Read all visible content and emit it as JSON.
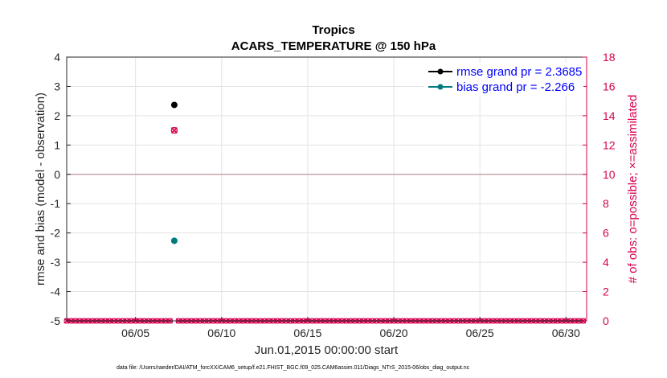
{
  "chart_data": {
    "type": "scatter",
    "title": "Tropics",
    "subtitle": "ACARS_TEMPERATURE @ 150 hPa",
    "xlabel": "Jun.01,2015 00:00:00 start",
    "ylabel_left": "rmse and bias (model - observation)",
    "ylabel_right": "# of obs: o=possible; ×=assimilated",
    "footnote": "data file: /Users/raeder/DAI/ATM_forcXX/CAM6_setup/f.e21.FHIST_BGC.f09_025.CAM6assim.011/Diags_NTrS_2015-06/obs_diag_output.nc",
    "xlim": [
      1,
      31.2
    ],
    "ylim_left": [
      -5,
      4
    ],
    "ylim_right": [
      0,
      18
    ],
    "x_ticks": [
      5,
      10,
      15,
      20,
      25,
      30
    ],
    "x_tick_labels": [
      "06/05",
      "06/10",
      "06/15",
      "06/20",
      "06/25",
      "06/30"
    ],
    "y_left_ticks": [
      -5,
      -4,
      -3,
      -2,
      -1,
      0,
      1,
      2,
      3,
      4
    ],
    "y_left_tick_labels": [
      "-5",
      "-4",
      "-3",
      "-2",
      "-1",
      "0",
      "1",
      "2",
      "3",
      "4"
    ],
    "y_right_ticks": [
      0,
      2,
      4,
      6,
      8,
      10,
      12,
      14,
      16,
      18
    ],
    "y_right_tick_labels": [
      "0",
      "2",
      "4",
      "6",
      "8",
      "10",
      "12",
      "14",
      "16",
      "18"
    ],
    "grid": true,
    "legend_position": "top-right",
    "series": [
      {
        "name": "rmse grand pr = 2.3685",
        "axis": "left",
        "color": "#000000",
        "x": [
          7.25
        ],
        "values": [
          2.3685
        ]
      },
      {
        "name": "bias grand pr = -2.266",
        "axis": "left",
        "color": "#007a80",
        "x": [
          7.25
        ],
        "values": [
          -2.266
        ]
      },
      {
        "name": "obs possible",
        "axis": "right",
        "color": "#d6004f",
        "marker": "o",
        "x": [
          7.25
        ],
        "values": [
          13
        ]
      },
      {
        "name": "obs assimilated",
        "axis": "right",
        "color": "#d6004f",
        "marker": "x",
        "x": [
          7.25
        ],
        "values": [
          13
        ]
      }
    ],
    "zero_counts": {
      "axis": "right",
      "color": "#d6004f",
      "x_start": 1,
      "x_end": 31.2,
      "step": 0.25,
      "skip_x": [
        7.25
      ],
      "value": 0
    },
    "reference_line": {
      "axis": "left",
      "value": 0,
      "color": "#c9a3a8"
    }
  }
}
